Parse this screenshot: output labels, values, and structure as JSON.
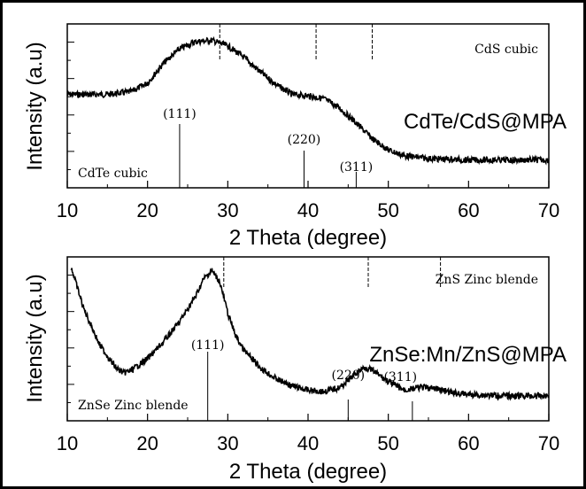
{
  "chart_data": [
    {
      "type": "line",
      "sample_label": "CdTe/CdS@MPA",
      "xlabel": "2 Theta (degree)",
      "ylabel": "Intensity (a.u)",
      "xlim": [
        10,
        70
      ],
      "xticks": [
        10,
        20,
        30,
        40,
        50,
        60,
        70
      ],
      "ylim": [
        0,
        1
      ],
      "series": [
        {
          "x": [
            10,
            15,
            18,
            20,
            22,
            24,
            26,
            28,
            30,
            32,
            34,
            36,
            38,
            40,
            42,
            44,
            46,
            48,
            50,
            52,
            55,
            60,
            65,
            70
          ],
          "values": [
            0.58,
            0.58,
            0.6,
            0.66,
            0.8,
            0.9,
            0.95,
            0.96,
            0.92,
            0.84,
            0.74,
            0.65,
            0.58,
            0.57,
            0.55,
            0.48,
            0.38,
            0.27,
            0.19,
            0.15,
            0.13,
            0.12,
            0.12,
            0.12
          ]
        }
      ],
      "reference_top": {
        "label": "CdS cubic",
        "lines": [
          29,
          41,
          48
        ]
      },
      "reference_bottom": {
        "label": "CdTe cubic",
        "lines": [
          24,
          39.5,
          46
        ]
      },
      "peak_labels": [
        {
          "text": "(111)",
          "x": 24
        },
        {
          "text": "(220)",
          "x": 39.5
        },
        {
          "text": "(311)",
          "x": 46
        }
      ]
    },
    {
      "type": "line",
      "sample_label": "ZnSe:Mn/ZnS@MPA",
      "xlabel": "2 Theta (degree)",
      "ylabel": "Intensity (a.u)",
      "xlim": [
        10,
        70
      ],
      "xticks": [
        10,
        20,
        30,
        40,
        50,
        60,
        70
      ],
      "ylim": [
        0,
        1
      ],
      "series": [
        {
          "x": [
            10.5,
            12,
            14,
            16,
            17,
            18,
            20,
            22,
            24,
            26,
            27,
            28,
            29,
            30,
            31,
            32,
            34,
            36,
            38,
            40,
            42,
            44,
            46,
            47,
            48,
            50,
            52,
            54,
            56,
            58,
            60,
            65,
            70
          ],
          "values": [
            1.0,
            0.72,
            0.46,
            0.3,
            0.26,
            0.28,
            0.36,
            0.48,
            0.62,
            0.8,
            0.92,
            0.98,
            0.9,
            0.68,
            0.52,
            0.42,
            0.3,
            0.22,
            0.17,
            0.14,
            0.13,
            0.16,
            0.26,
            0.3,
            0.28,
            0.2,
            0.14,
            0.16,
            0.15,
            0.12,
            0.11,
            0.1,
            0.1
          ]
        }
      ],
      "reference_top": {
        "label": "ZnS Zinc blende",
        "lines": [
          29.5,
          47.5,
          56.5
        ]
      },
      "reference_bottom": {
        "label": "ZnSe Zinc blende",
        "lines": [
          27.5,
          45,
          53
        ]
      },
      "peak_labels": [
        {
          "text": "(111)",
          "x": 27.5
        },
        {
          "text": "(220)",
          "x": 45
        },
        {
          "text": "(311)",
          "x": 51.5
        }
      ]
    }
  ]
}
